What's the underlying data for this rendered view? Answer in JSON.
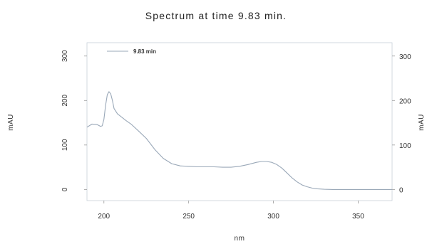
{
  "chart_data": {
    "type": "line",
    "title": "Spectrum at time 9.83 min.",
    "xlabel": "nm",
    "ylabel": "mAU",
    "y2label": "mAU",
    "xlim": [
      190,
      370
    ],
    "ylim": [
      -25,
      330
    ],
    "x_ticks": [
      200,
      250,
      300,
      350
    ],
    "y_ticks": [
      0,
      100,
      200,
      300
    ],
    "y2_ticks": [
      0,
      100,
      200,
      300
    ],
    "grid": false,
    "legend_position": "top-left",
    "line_color": "#9aa8b8",
    "series": [
      {
        "name": "9.83 min",
        "x": [
          190,
          193,
          196,
          198,
          199,
          200,
          201,
          202,
          203,
          204,
          205,
          206,
          208,
          210,
          213,
          216,
          220,
          225,
          230,
          235,
          240,
          245,
          250,
          255,
          260,
          265,
          270,
          275,
          280,
          285,
          290,
          293,
          296,
          299,
          302,
          305,
          308,
          311,
          314,
          317,
          320,
          323,
          326,
          330,
          335,
          340,
          350,
          360,
          370
        ],
        "y": [
          140,
          147,
          146,
          142,
          143,
          158,
          190,
          213,
          220,
          215,
          200,
          182,
          170,
          164,
          155,
          147,
          133,
          115,
          90,
          70,
          58,
          53,
          52,
          51,
          51,
          51,
          50,
          50,
          52,
          56,
          61,
          63,
          63,
          61,
          56,
          48,
          37,
          26,
          17,
          10,
          6,
          3,
          1.5,
          0.5,
          0,
          0,
          0,
          0,
          0
        ]
      }
    ]
  }
}
